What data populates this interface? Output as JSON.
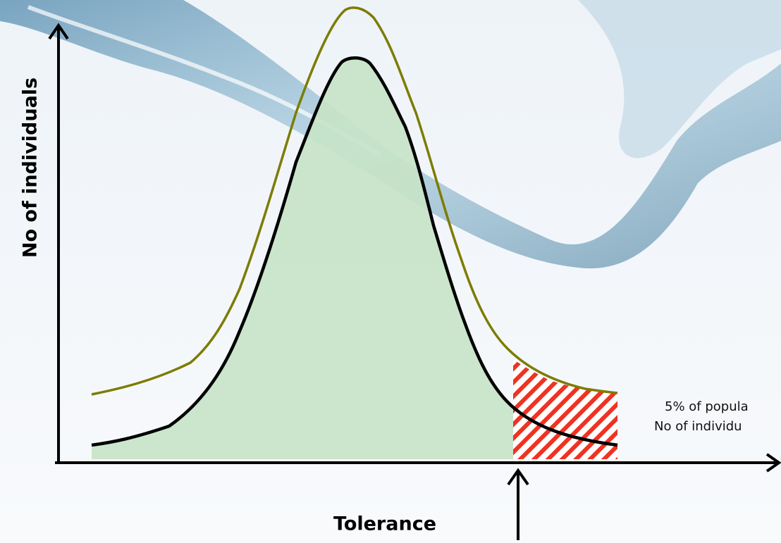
{
  "axes": {
    "y_label": "No of individuals",
    "x_label": "Tolerance"
  },
  "annotation": {
    "line1": "5% of popula",
    "line2": "No of individu"
  }
}
